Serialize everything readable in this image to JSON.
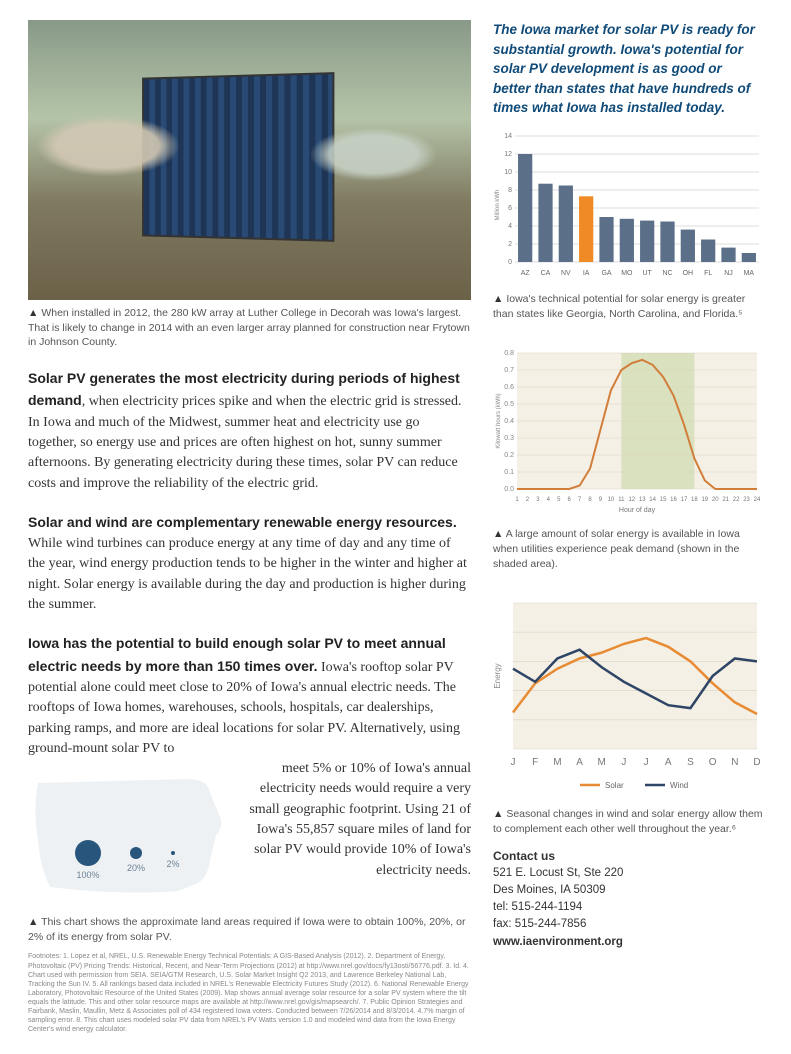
{
  "intro_right": "The Iowa market for solar PV is ready for substantial growth. Iowa's potential for solar PV development is as good or better than states that have hundreds of times what Iowa has installed today.",
  "photo_caption": "When installed in 2012, the 280 kW array at Luther College in Decorah was Iowa's largest. That is likely to change in 2014 with an even larger array planned for construction near Frytown in Johnson County.",
  "para1_lead": "Solar PV generates the most electricity during periods of highest demand",
  "para1_body": ", when electricity prices spike and when the electric grid is stressed. In Iowa and much of the Midwest, summer heat and electricity use go together, so energy use and prices are often highest on hot, sunny summer afternoons. By generating electricity during these times, solar PV can reduce costs and improve the reliability of the electric grid.",
  "para2_lead": "Solar and wind are complementary renewable energy resources.",
  "para2_body": " While wind turbines can produce energy at any time of day and any time of the year, wind energy production tends to be higher in the winter and higher at night. Solar energy is available during the day and production is higher during the summer.",
  "para3_lead": "Iowa has the potential to build enough solar PV to meet annual electric needs by more than 150 times over.",
  "para3_body": " Iowa's rooftop solar PV potential alone could meet close to 20% of Iowa's annual electric needs. The rooftops of Iowa homes, warehouses, schools, hospitals, car dealerships, parking ramps, and more are ideal locations for solar PV. Alternatively, using ground-mount solar PV to",
  "para3_right": "meet 5% or 10% of Iowa's annual electricity needs would require a very small geographic footprint. Using 21 of Iowa's 55,857 square miles of land for solar PV would provide 10% of Iowa's electricity needs.",
  "iowa_caption": "This chart shows the approximate land areas required if Iowa were to obtain 100%, 20%, or 2% of its energy from solar PV.",
  "iowa_bubbles": {
    "labels": [
      "100%",
      "20%",
      "2%"
    ],
    "radii": [
      13,
      6,
      2
    ],
    "color": "#28557b",
    "map_fill": "#eef1f3"
  },
  "bar_chart": {
    "ymax": 14,
    "ytick_step": 2,
    "categories": [
      "AZ",
      "CA",
      "NV",
      "IA",
      "GA",
      "MO",
      "UT",
      "NC",
      "OH",
      "FL",
      "NJ",
      "MA"
    ],
    "values": [
      12.0,
      8.7,
      8.5,
      7.3,
      5.0,
      4.8,
      4.6,
      4.5,
      3.6,
      2.5,
      1.6,
      1.0
    ],
    "default_color": "#5b6f88",
    "highlight_index": 3,
    "highlight_color": "#f08a24",
    "axis_color": "#aaa",
    "bg": "#ffffff",
    "tick_font": 7
  },
  "bar_caption": "Iowa's technical potential for solar energy is greater than states like Georgia, North Carolina, and Florida.⁵",
  "line_chart": {
    "xticks": [
      1,
      2,
      3,
      4,
      5,
      6,
      7,
      8,
      9,
      10,
      11,
      12,
      13,
      14,
      15,
      16,
      17,
      18,
      19,
      20,
      21,
      22,
      23,
      24
    ],
    "ymax": 0.8,
    "ytick_step": 0.1,
    "values": [
      0,
      0,
      0,
      0,
      0,
      0,
      0.02,
      0.12,
      0.35,
      0.58,
      0.7,
      0.74,
      0.76,
      0.73,
      0.66,
      0.55,
      0.38,
      0.18,
      0.05,
      0,
      0,
      0,
      0,
      0
    ],
    "line_color": "#d17e3a",
    "shade_start": 11,
    "shade_end": 18,
    "shade_color": "#c5d6a0",
    "bg": "#f4f0e5",
    "grid_color": "#dcd4c0",
    "xlabel": "Hour of day"
  },
  "line_caption": "A large amount of solar energy is available in Iowa when utilities experience peak demand (shown in the shaded area).",
  "seasonal_chart": {
    "months": [
      "J",
      "F",
      "M",
      "A",
      "M",
      "J",
      "J",
      "A",
      "S",
      "O",
      "N",
      "D"
    ],
    "solar": [
      0.25,
      0.45,
      0.55,
      0.62,
      0.66,
      0.72,
      0.76,
      0.7,
      0.6,
      0.45,
      0.32,
      0.24
    ],
    "wind": [
      0.55,
      0.46,
      0.62,
      0.68,
      0.56,
      0.46,
      0.38,
      0.3,
      0.28,
      0.5,
      0.62,
      0.6
    ],
    "solar_color": "#e78b34",
    "wind_color": "#2f4566",
    "bg": "#f4f0e5",
    "grid_color": "#dcd4c0",
    "ylabel": "Energy",
    "legend": {
      "solar": "Solar",
      "wind": "Wind"
    }
  },
  "seasonal_caption": "Seasonal changes in wind and solar energy allow them to complement each other well throughout the year.⁶",
  "footnotes": "Footnotes: 1. Lopez et al, NREL, U.S. Renewable Energy Technical Potentials: A GIS-Based Analysis (2012). 2. Department of Energy, Photovoltaic (PV) Pricing Trends: Historical, Recent, and Near-Term Projections (2012) at http://www.nrel.gov/docs/fy13osti/56776.pdf. 3. Id. 4. Chart used with permission from SEIA. SEIA/GTM Research, U.S. Solar Market Insight Q2 2013, and Lawrence Berkeley National Lab, Tracking the Sun IV. 5. All rankings based data included in NREL's Renewable Electricity Futures Study (2012). 6. National Renewable Energy Laboratory, Photovoltaic Resource of the United States (2009). Map shows annual average solar resource for a solar PV system where the tilt equals the latitude. This and other solar resource maps are available at http://www.nrel.gov/gis/mapsearch/. 7. Public Opinion Strategies and Fairbank, Maslin, Maullin, Metz & Associates poll of 434 registered Iowa voters. Conducted between 7/26/2014 and 8/3/2014. 4.7% margin of sampling error. 8. This chart uses modeled solar PV data from NREL's PV Watts version 1.0 and modeled wind data from the Iowa Energy Center's wind energy calculator.",
  "contact": {
    "heading": "Contact us",
    "addr1": "521 E. Locust St, Ste 220",
    "addr2": "Des Moines, IA  50309",
    "tel": "tel: 515-244-1194",
    "fax": "fax: 515-244-7856",
    "web": "www.iaenvironment.org"
  }
}
